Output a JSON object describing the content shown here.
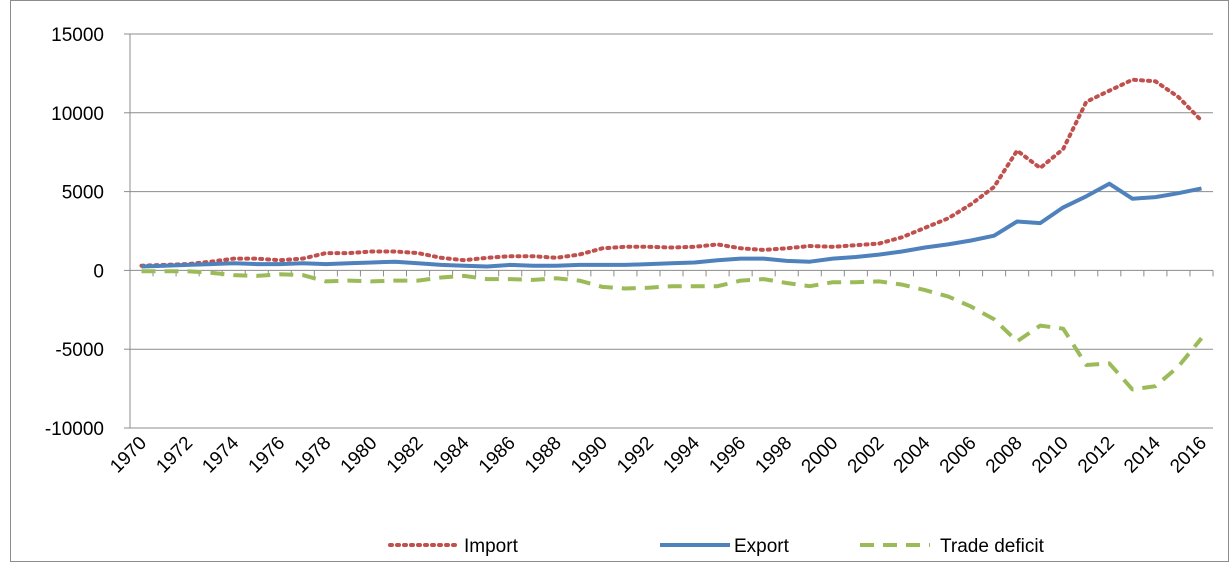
{
  "chart_data": {
    "type": "line",
    "categories": [
      "1970",
      null,
      "1972",
      null,
      "1974",
      null,
      "1976",
      null,
      "1978",
      null,
      "1980",
      null,
      "1982",
      null,
      "1984",
      null,
      "1986",
      null,
      "1988",
      null,
      "1990",
      null,
      "1992",
      null,
      "1994",
      null,
      "1996",
      null,
      "1998",
      null,
      "2000",
      null,
      "2002",
      null,
      "2004",
      null,
      "2006",
      null,
      "2008",
      null,
      "2010",
      null,
      "2012",
      null,
      "2014",
      null,
      "2016"
    ],
    "series": [
      {
        "name": "Import",
        "color": "#c0504d",
        "style": "dotted",
        "values": [
          300,
          350,
          400,
          550,
          750,
          750,
          650,
          750,
          1100,
          1100,
          1200,
          1200,
          1100,
          800,
          650,
          800,
          900,
          900,
          800,
          1000,
          1400,
          1500,
          1500,
          1450,
          1500,
          1650,
          1400,
          1300,
          1400,
          1550,
          1500,
          1600,
          1700,
          2100,
          2700,
          3300,
          4200,
          5300,
          7600,
          6500,
          7700,
          10700,
          11400,
          12100,
          12000,
          11000,
          9500
        ]
      },
      {
        "name": "Export",
        "color": "#4f81bd",
        "style": "solid",
        "values": [
          250,
          300,
          350,
          400,
          450,
          400,
          400,
          450,
          400,
          450,
          500,
          550,
          450,
          350,
          300,
          250,
          350,
          300,
          300,
          350,
          350,
          350,
          400,
          450,
          500,
          650,
          750,
          750,
          600,
          550,
          750,
          850,
          1000,
          1200,
          1450,
          1650,
          1900,
          2200,
          3100,
          3000,
          4000,
          4700,
          5500,
          4550,
          4650,
          4900,
          5200
        ]
      },
      {
        "name": "Trade deficit",
        "color": "#9bbb59",
        "style": "dashed",
        "values": [
          -50,
          -50,
          -50,
          -150,
          -300,
          -350,
          -250,
          -300,
          -700,
          -650,
          -700,
          -650,
          -650,
          -450,
          -350,
          -550,
          -550,
          -600,
          -500,
          -650,
          -1050,
          -1150,
          -1100,
          -1000,
          -1000,
          -1000,
          -650,
          -550,
          -800,
          -1000,
          -750,
          -750,
          -700,
          -900,
          -1250,
          -1650,
          -2300,
          -3100,
          -4500,
          -3500,
          -3700,
          -6000,
          -5900,
          -7550,
          -7350,
          -6100,
          -4300
        ]
      }
    ],
    "ylim": [
      -10000,
      15000
    ],
    "yticks": [
      -10000,
      -5000,
      0,
      5000,
      10000,
      15000
    ],
    "grid": true,
    "legend": "bottom"
  }
}
